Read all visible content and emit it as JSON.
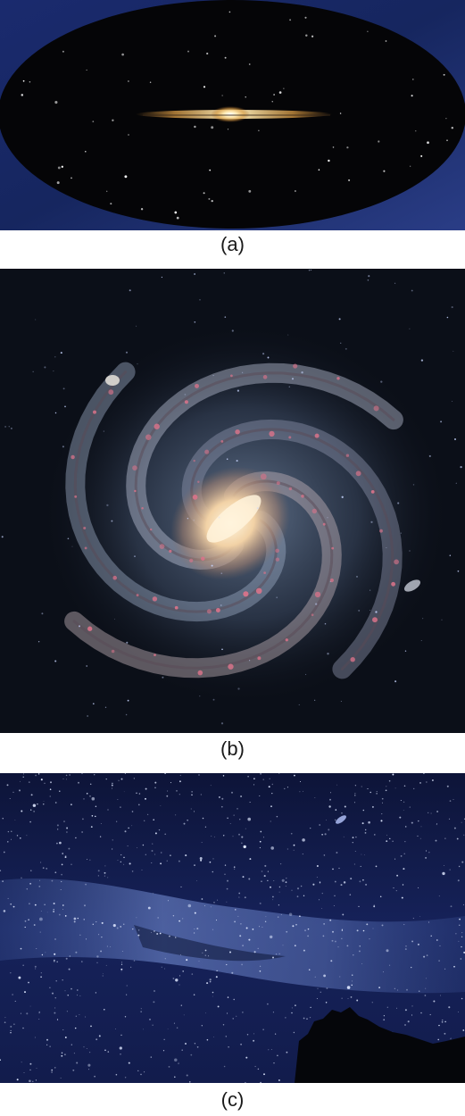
{
  "panels": [
    {
      "caption": "(a)"
    },
    {
      "caption": "(b)"
    },
    {
      "caption": "(c)"
    }
  ],
  "colors": {
    "panel_a_background": "#1b2b6b",
    "panel_a_sky": "#050507",
    "panel_b_background": "#0b0f18",
    "panel_c_background": "#101a45"
  }
}
